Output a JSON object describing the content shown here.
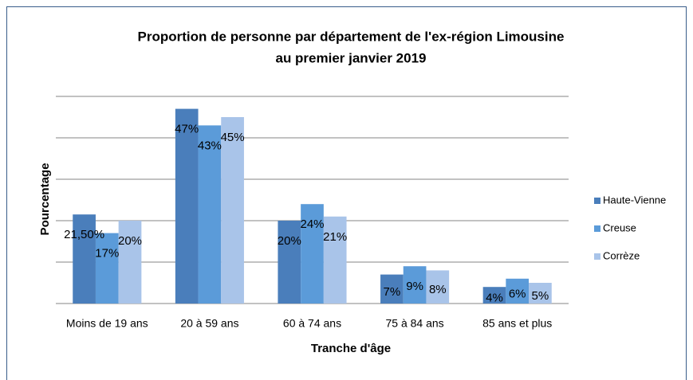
{
  "chart_data": {
    "type": "bar",
    "title": [
      "Proportion de personne par département de l'ex-région Limousine",
      "au premier janvier 2019"
    ],
    "x_label": "Tranche d'âge",
    "y_label": "Pourcentage",
    "categories": [
      "Moins de 19 ans",
      "20 à 59 ans",
      "60 à 74 ans",
      "75 à 84 ans",
      "85 ans et plus"
    ],
    "series": [
      {
        "name": "Haute-Vienne",
        "color": "#4a7ebb",
        "values": [
          21.5,
          47,
          20,
          7,
          4
        ],
        "value_labels": [
          "21,50%",
          "47%",
          "20%",
          "7%",
          "4%"
        ]
      },
      {
        "name": "Creuse",
        "color": "#5b9bd9",
        "values": [
          17,
          43,
          24,
          9,
          6
        ],
        "value_labels": [
          "17%",
          "43%",
          "24%",
          "9%",
          "6%"
        ]
      },
      {
        "name": "Corrèze",
        "color": "#a9c4e9",
        "values": [
          20,
          45,
          21,
          8,
          5
        ],
        "value_labels": [
          "20%",
          "45%",
          "21%",
          "8%",
          "5%"
        ]
      }
    ],
    "ylim": [
      0,
      50
    ],
    "yticks": [
      0,
      10,
      20,
      30,
      40,
      50
    ],
    "grid": true,
    "legend": "right"
  }
}
